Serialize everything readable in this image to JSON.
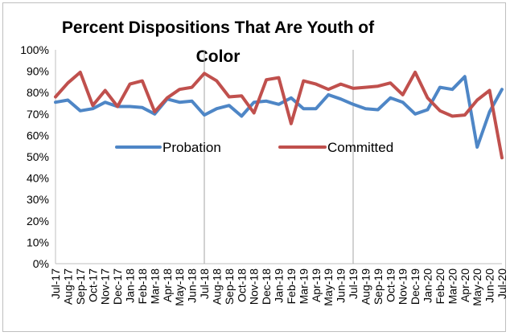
{
  "chart_data": {
    "type": "line",
    "title_line1": "Percent Dispositions That Are Youth of",
    "title_line2": "Color",
    "x": [
      "Jul-17",
      "Aug-17",
      "Sep-17",
      "Oct-17",
      "Nov-17",
      "Dec-17",
      "Jan-18",
      "Feb-18",
      "Mar-18",
      "Apr-18",
      "May-18",
      "Jun-18",
      "Jul-18",
      "Aug-18",
      "Sep-18",
      "Oct-18",
      "Nov-18",
      "Dec-18",
      "Jan-19",
      "Feb-19",
      "Mar-19",
      "Apr-19",
      "May-19",
      "Jun-19",
      "Jul-19",
      "Aug-19",
      "Sep-19",
      "Oct-19",
      "Nov-19",
      "Dec-19",
      "Jan-20",
      "Feb-20",
      "Mar-20",
      "Apr-20",
      "May-20",
      "Jun-20",
      "Jul-20"
    ],
    "y_ticks": [
      "0%",
      "10%",
      "20%",
      "30%",
      "40%",
      "50%",
      "60%",
      "70%",
      "80%",
      "90%",
      "100%"
    ],
    "ylim": [
      0,
      100
    ],
    "legend_position": "center",
    "grid": false,
    "series": [
      {
        "name": "Probation",
        "color": "#4e86c6",
        "values": [
          75.5,
          76.5,
          71.5,
          72.5,
          75.5,
          73.5,
          73.5,
          73,
          70,
          77,
          75.5,
          76,
          69.5,
          72.5,
          74,
          69,
          75.5,
          76,
          74.5,
          77.5,
          72.5,
          72.5,
          79,
          77,
          74.5,
          72.5,
          72,
          77.5,
          75.5,
          70,
          72,
          82.5,
          81.5,
          87.5,
          54.5,
          71,
          81.5
        ]
      },
      {
        "name": "Committed",
        "color": "#c0504d",
        "values": [
          78,
          84.5,
          89.5,
          74,
          81,
          73.5,
          84,
          85.5,
          71,
          77.5,
          81.5,
          82.5,
          89,
          85.5,
          78,
          78.5,
          70.5,
          86,
          87,
          65.5,
          85.5,
          84,
          81.5,
          84,
          82,
          82.5,
          83,
          84.5,
          79,
          89.5,
          77.5,
          71.5,
          69,
          69.5,
          76.5,
          81,
          49.5
        ]
      }
    ]
  }
}
